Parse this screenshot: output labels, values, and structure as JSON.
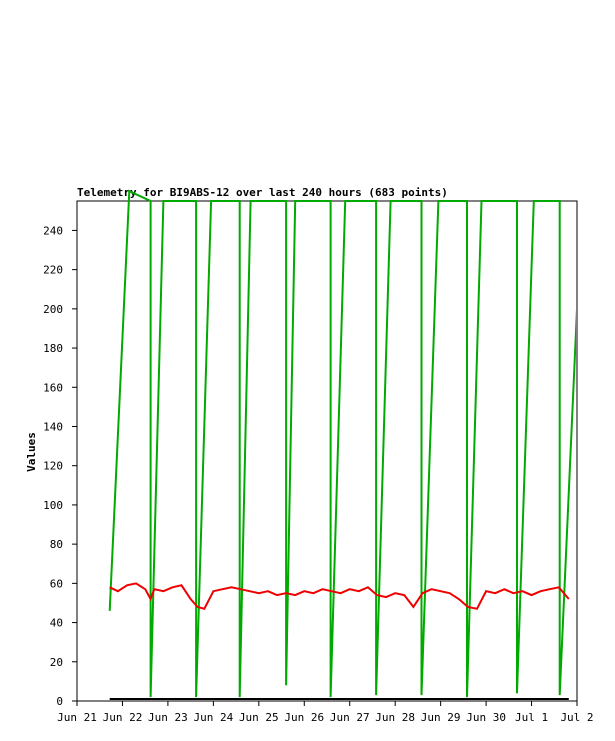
{
  "chart_data": {
    "type": "line",
    "title": "Telemetry for BI9ABS-12 over last 240 hours (683 points)",
    "xlabel": "",
    "ylabel": "Values",
    "ylim": [
      0,
      255
    ],
    "yticks": [
      0,
      20,
      40,
      60,
      80,
      100,
      120,
      140,
      160,
      180,
      200,
      220,
      240
    ],
    "x_tick_labels": [
      "Jun 21",
      "Jun 22",
      "Jun 23",
      "Jun 24",
      "Jun 25",
      "Jun 26",
      "Jun 27",
      "Jun 28",
      "Jun 29",
      "Jun 30",
      "Jul 1",
      "Jul 2"
    ],
    "x_unit": "days after Jun 21 00:00",
    "xlim": [
      0,
      11
    ],
    "grid": false,
    "series": [
      {
        "color": "#00aa00",
        "style": "sawtooth counter, wraps at 255",
        "x": [
          0.72,
          1.15,
          1.62,
          1.62,
          1.9,
          2.62,
          2.62,
          2.95,
          3.58,
          3.58,
          3.82,
          4.6,
          4.6,
          4.8,
          5.58,
          5.58,
          5.9,
          6.58,
          6.58,
          6.9,
          7.58,
          7.58,
          7.95,
          8.58,
          8.58,
          8.9,
          9.68,
          9.68,
          10.05,
          10.62,
          10.62,
          11.0
        ],
        "values": [
          46,
          260,
          255,
          2,
          255,
          255,
          2,
          255,
          255,
          2,
          255,
          255,
          8,
          255,
          255,
          2,
          255,
          255,
          3,
          255,
          255,
          3,
          255,
          255,
          2,
          255,
          255,
          4,
          255,
          255,
          3,
          200
        ]
      },
      {
        "color": "#ee0000",
        "style": "noisy line",
        "x": [
          0.72,
          0.9,
          1.1,
          1.3,
          1.5,
          1.62,
          1.7,
          1.9,
          2.1,
          2.3,
          2.5,
          2.65,
          2.8,
          3.0,
          3.2,
          3.4,
          3.6,
          3.8,
          4.0,
          4.2,
          4.4,
          4.6,
          4.8,
          5.0,
          5.2,
          5.4,
          5.6,
          5.8,
          6.0,
          6.2,
          6.4,
          6.6,
          6.8,
          7.0,
          7.2,
          7.4,
          7.6,
          7.8,
          8.0,
          8.2,
          8.4,
          8.6,
          8.8,
          9.0,
          9.2,
          9.4,
          9.6,
          9.8,
          10.0,
          10.2,
          10.4,
          10.6,
          10.82
        ],
        "values": [
          58,
          56,
          59,
          60,
          57,
          52,
          57,
          56,
          58,
          59,
          52,
          48,
          47,
          56,
          57,
          58,
          57,
          56,
          55,
          56,
          54,
          55,
          54,
          56,
          55,
          57,
          56,
          55,
          57,
          56,
          58,
          54,
          53,
          55,
          54,
          48,
          55,
          57,
          56,
          55,
          52,
          48,
          47,
          56,
          55,
          57,
          55,
          56,
          54,
          56,
          57,
          58,
          52
        ]
      },
      {
        "color": "#000000",
        "style": "flat line",
        "x": [
          0.72,
          10.82
        ],
        "values": [
          1,
          1
        ]
      }
    ]
  }
}
